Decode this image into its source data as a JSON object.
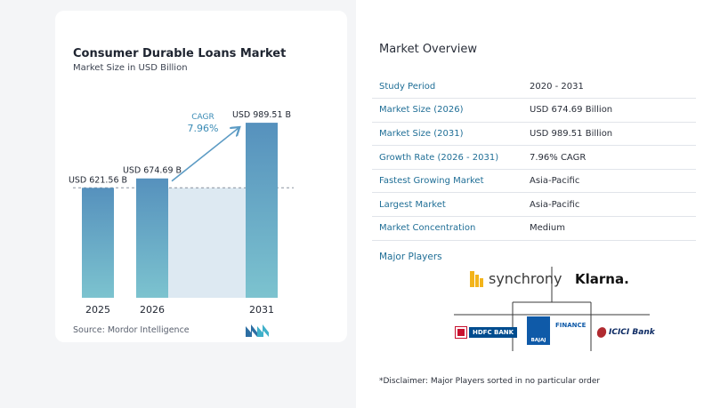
{
  "chart": {
    "title": "Consumer Durable Loans Market",
    "subtitle": "Market Size in USD Billion",
    "source": "Source:  Mordor Intelligence",
    "cagr_label": "CAGR",
    "cagr_value": "7.96%"
  },
  "chart_data": {
    "type": "bar",
    "categories": [
      "2025",
      "2026",
      "2031"
    ],
    "values": [
      621.56,
      674.69,
      989.51
    ],
    "value_labels": [
      "USD 621.56 B",
      "USD 674.69 B",
      "USD 989.51 B"
    ],
    "ylim": [
      0,
      1000
    ],
    "grid": false,
    "bar_color": "#5c9bc4"
  },
  "overview": {
    "title": "Market Overview",
    "rows": [
      {
        "label": "Study Period",
        "value": "2020 - 2031"
      },
      {
        "label": "Market Size (2026)",
        "value": "USD 674.69 Billion"
      },
      {
        "label": "Market Size (2031)",
        "value": "USD 989.51 Billion"
      },
      {
        "label": "Growth Rate (2026 - 2031)",
        "value": "7.96% CAGR"
      },
      {
        "label": "Fastest Growing Market",
        "value": "Asia-Pacific"
      },
      {
        "label": "Largest Market",
        "value": "Asia-Pacific"
      },
      {
        "label": "Market Concentration",
        "value": "Medium"
      }
    ]
  },
  "players": {
    "title": "Major Players",
    "synchrony": "synchrony",
    "klarna": "Klarna.",
    "hdfc": "HDFC BANK",
    "bajaj_mark": "BAJAJ",
    "bajaj_text": "FINANCE",
    "icici": "ICICI Bank"
  },
  "disclaimer": "*Disclaimer: Major Players sorted in no particular order",
  "colors": {
    "accent": "#1f6e96",
    "bar": "#5c9bc4",
    "shade": "#dde9f2"
  }
}
